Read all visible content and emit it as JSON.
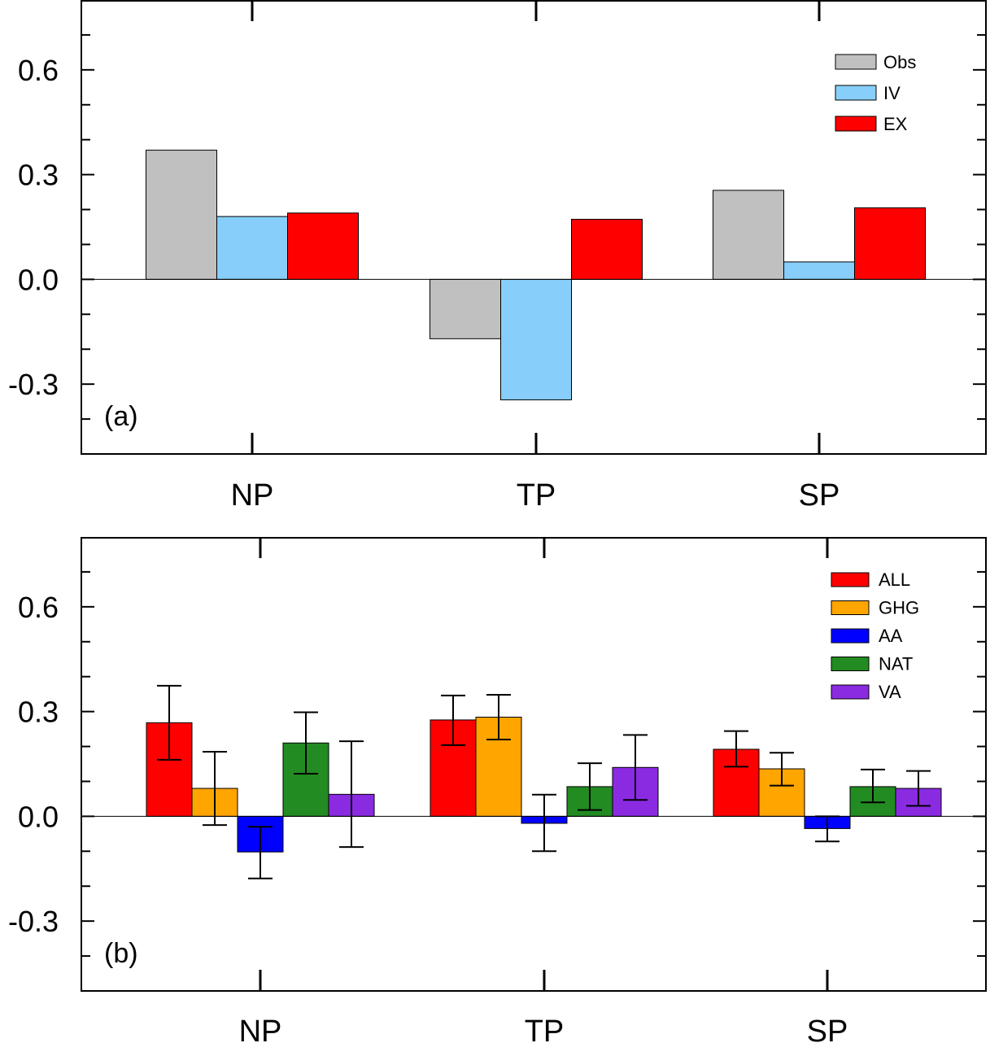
{
  "chart_data": [
    {
      "type": "bar",
      "panel": "(a)",
      "categories": [
        "NP",
        "TP",
        "SP"
      ],
      "ylim": [
        -0.5,
        0.8
      ],
      "yticks": [
        -0.3,
        0.0,
        0.3,
        0.6
      ],
      "ytick_labels": [
        "-0.3",
        "0.0",
        "0.3",
        "0.6"
      ],
      "grid": false,
      "legend_position": "top-right",
      "series": [
        {
          "name": "Obs",
          "color": "#c0c0c0",
          "values": [
            0.37,
            -0.17,
            0.255
          ]
        },
        {
          "name": "IV",
          "color": "#87cefa",
          "values": [
            0.18,
            -0.345,
            0.05
          ]
        },
        {
          "name": "EX",
          "color": "#ff0000",
          "values": [
            0.19,
            0.172,
            0.205
          ]
        }
      ]
    },
    {
      "type": "bar",
      "panel": "(b)",
      "categories": [
        "NP",
        "TP",
        "SP"
      ],
      "ylim": [
        -0.5,
        0.8
      ],
      "yticks": [
        -0.3,
        0.0,
        0.3,
        0.6
      ],
      "ytick_labels": [
        "-0.3",
        "0.0",
        "0.3",
        "0.6"
      ],
      "grid": false,
      "legend_position": "top-right",
      "series": [
        {
          "name": "ALL",
          "color": "#ff0000",
          "values": [
            0.268,
            0.276,
            0.192
          ],
          "error_low": [
            0.162,
            0.204,
            0.142
          ],
          "error_high": [
            0.374,
            0.346,
            0.244
          ]
        },
        {
          "name": "GHG",
          "color": "#ffa500",
          "values": [
            0.08,
            0.284,
            0.136
          ],
          "error_low": [
            -0.025,
            0.22,
            0.088
          ],
          "error_high": [
            0.185,
            0.348,
            0.182
          ]
        },
        {
          "name": "AA",
          "color": "#0000ff",
          "values": [
            -0.102,
            -0.02,
            -0.035
          ],
          "error_low": [
            -0.178,
            -0.1,
            -0.072
          ],
          "error_high": [
            -0.03,
            0.062,
            0.0
          ]
        },
        {
          "name": "NAT",
          "color": "#228b22",
          "values": [
            0.21,
            0.085,
            0.085
          ],
          "error_low": [
            0.122,
            0.018,
            0.04
          ],
          "error_high": [
            0.298,
            0.152,
            0.134
          ]
        },
        {
          "name": "VA",
          "color": "#8a2be2",
          "values": [
            0.063,
            0.14,
            0.08
          ],
          "error_low": [
            -0.088,
            0.047,
            0.03
          ],
          "error_high": [
            0.215,
            0.233,
            0.13
          ]
        }
      ]
    }
  ]
}
